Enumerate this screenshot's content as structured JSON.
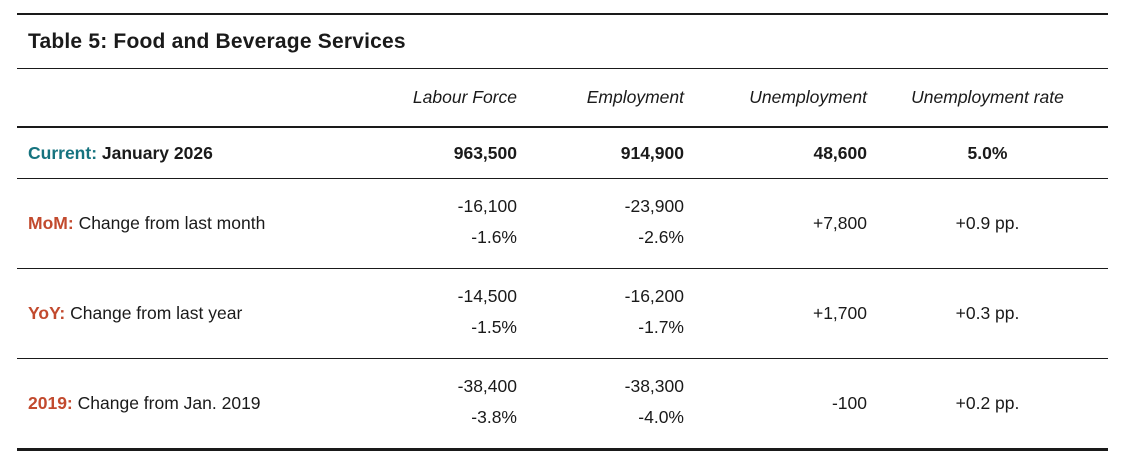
{
  "title": "Table 5: Food and Beverage Services",
  "columns": [
    "Labour Force",
    "Employment",
    "Unemployment",
    "Unemployment rate"
  ],
  "current": {
    "prefix": "Current:",
    "label": "January 2026",
    "labour_force": "963,500",
    "employment": "914,900",
    "unemployment": "48,600",
    "unemployment_rate": "5.0%"
  },
  "rows": [
    {
      "prefix": "MoM:",
      "label": "Change from last month",
      "labour_force": {
        "abs": "-16,100",
        "pct": "-1.6%"
      },
      "employment": {
        "abs": "-23,900",
        "pct": "-2.6%"
      },
      "unemployment": "+7,800",
      "unemployment_rate": "+0.9 pp."
    },
    {
      "prefix": "YoY:",
      "label": "Change from last year",
      "labour_force": {
        "abs": "-14,500",
        "pct": "-1.5%"
      },
      "employment": {
        "abs": "-16,200",
        "pct": "-1.7%"
      },
      "unemployment": "+1,700",
      "unemployment_rate": "+0.3 pp."
    },
    {
      "prefix": "2019:",
      "label": "Change from Jan. 2019",
      "labour_force": {
        "abs": "-38,400",
        "pct": "-3.8%"
      },
      "employment": {
        "abs": "-38,300",
        "pct": "-4.0%"
      },
      "unemployment": "-100",
      "unemployment_rate": "+0.2 pp."
    }
  ],
  "colors": {
    "teal_accent": "#16737f",
    "red_accent": "#c24a2e",
    "rule": "#1a1a1a"
  }
}
